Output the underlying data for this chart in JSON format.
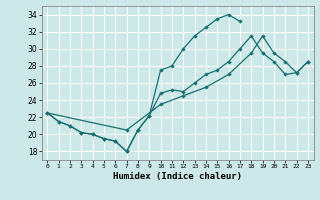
{
  "xlabel": "Humidex (Indice chaleur)",
  "bg_color": "#cce8e8",
  "grid_color": "#ffffff",
  "line_color": "#1a7070",
  "xlim": [
    -0.5,
    23.5
  ],
  "ylim": [
    17,
    35
  ],
  "xticks": [
    0,
    1,
    2,
    3,
    4,
    5,
    6,
    7,
    8,
    9,
    10,
    11,
    12,
    13,
    14,
    15,
    16,
    17,
    18,
    19,
    20,
    21,
    22,
    23
  ],
  "yticks": [
    18,
    20,
    22,
    24,
    26,
    28,
    30,
    32,
    34
  ],
  "line1_x": [
    0,
    1,
    2,
    3,
    4,
    5,
    6,
    7,
    8,
    9,
    10,
    11,
    12,
    13,
    14,
    15,
    16,
    17
  ],
  "line1_y": [
    22.5,
    21.5,
    21.0,
    20.2,
    20.0,
    19.5,
    19.2,
    18.0,
    20.5,
    22.2,
    27.5,
    28.0,
    30.0,
    31.5,
    32.5,
    33.5,
    34.0,
    33.2
  ],
  "line2_x": [
    0,
    1,
    2,
    3,
    4,
    5,
    6,
    7,
    8,
    9,
    10,
    11,
    12,
    13,
    14,
    15,
    16,
    17,
    18,
    19,
    20,
    21,
    22,
    23
  ],
  "line2_y": [
    22.5,
    21.5,
    21.0,
    20.2,
    20.0,
    19.5,
    19.2,
    18.0,
    20.5,
    22.2,
    24.8,
    25.2,
    25.0,
    26.0,
    27.0,
    27.5,
    28.5,
    30.0,
    31.5,
    29.5,
    28.5,
    27.0,
    27.2,
    28.5
  ],
  "line3_x": [
    0,
    7,
    10,
    12,
    14,
    16,
    18,
    19,
    20,
    21,
    22,
    23
  ],
  "line3_y": [
    22.5,
    20.5,
    23.5,
    24.5,
    25.5,
    27.0,
    29.5,
    31.5,
    29.5,
    28.5,
    27.2,
    28.5
  ]
}
